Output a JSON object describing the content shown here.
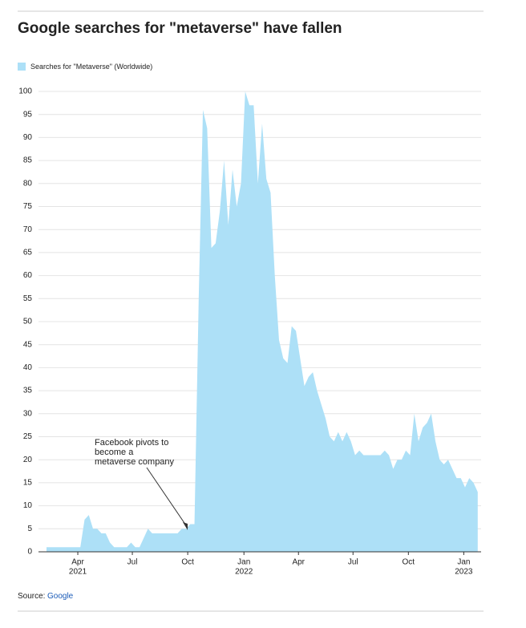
{
  "chart_data": {
    "type": "area",
    "title": "Google searches for \"metaverse\" have fallen",
    "series": [
      {
        "name": "Searches for \"Metaverse\" (Worldwide)",
        "color": "#ade0f7",
        "values": [
          1,
          1,
          1,
          1,
          1,
          1,
          1,
          1,
          1,
          7,
          8,
          5,
          5,
          4,
          4,
          2,
          1,
          1,
          1,
          1,
          2,
          1,
          1,
          3,
          5,
          4,
          4,
          4,
          4,
          4,
          4,
          4,
          5,
          5,
          6,
          6,
          55,
          96,
          92,
          66,
          67,
          74,
          85,
          71,
          83,
          75,
          80,
          100,
          97,
          97,
          80,
          93,
          81,
          78,
          60,
          46,
          42,
          41,
          49,
          48,
          42,
          36,
          38,
          39,
          35,
          32,
          29,
          25,
          24,
          26,
          24,
          26,
          24,
          21,
          22,
          21,
          21,
          21,
          21,
          21,
          22,
          21,
          18,
          20,
          20,
          22,
          21,
          30,
          24,
          27,
          28,
          30,
          24,
          20,
          19,
          20,
          18,
          16,
          16,
          14,
          16,
          15,
          13
        ]
      }
    ],
    "xlim": [
      -1.9,
      102.8
    ],
    "xticks": [
      {
        "value": 7.4,
        "label": "Apr",
        "year": "2021"
      },
      {
        "value": 20.3,
        "label": "Jul"
      },
      {
        "value": 33.4,
        "label": "Oct"
      },
      {
        "value": 46.7,
        "label": "Jan",
        "year": "2022"
      },
      {
        "value": 59.6,
        "label": "Apr"
      },
      {
        "value": 72.5,
        "label": "Jul"
      },
      {
        "value": 85.6,
        "label": "Oct"
      },
      {
        "value": 98.7,
        "label": "Jan",
        "year": "2023"
      }
    ],
    "ylim": [
      0,
      100
    ],
    "yticks": [
      0,
      5,
      10,
      15,
      20,
      25,
      30,
      35,
      40,
      45,
      50,
      55,
      60,
      65,
      70,
      75,
      80,
      85,
      90,
      95,
      100
    ],
    "grid": true,
    "annotation": [
      "Facebook pivots to",
      "become a",
      "metaverse company"
    ],
    "source_label": "Source:",
    "source": "Google"
  }
}
